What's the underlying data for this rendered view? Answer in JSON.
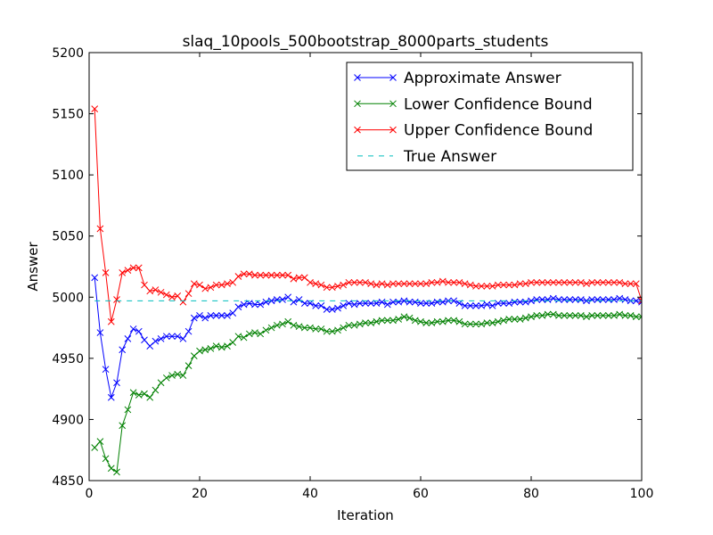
{
  "chart_data": {
    "type": "line",
    "title": "slaq_10pools_500bootstrap_8000parts_students",
    "xlabel": "Iteration",
    "ylabel": "Answer",
    "xlim": [
      0,
      100
    ],
    "ylim": [
      4850,
      5200
    ],
    "xticks": [
      0,
      20,
      40,
      60,
      80,
      100
    ],
    "yticks": [
      4850,
      4900,
      4950,
      5000,
      5050,
      5100,
      5150,
      5200
    ],
    "grid": false,
    "legend_position": "top-right",
    "series": [
      {
        "name": "Approximate Answer",
        "color": "#0000ff",
        "marker": "x",
        "style": "solid",
        "x": [
          1,
          2,
          3,
          4,
          5,
          6,
          7,
          8,
          9,
          10,
          11,
          12,
          13,
          14,
          15,
          16,
          17,
          18,
          19,
          20,
          21,
          22,
          23,
          24,
          25,
          26,
          27,
          28,
          29,
          30,
          31,
          32,
          33,
          34,
          35,
          36,
          37,
          38,
          39,
          40,
          41,
          42,
          43,
          44,
          45,
          46,
          47,
          48,
          49,
          50,
          51,
          52,
          53,
          54,
          55,
          56,
          57,
          58,
          59,
          60,
          61,
          62,
          63,
          64,
          65,
          66,
          67,
          68,
          69,
          70,
          71,
          72,
          73,
          74,
          75,
          76,
          77,
          78,
          79,
          80,
          81,
          82,
          83,
          84,
          85,
          86,
          87,
          88,
          89,
          90,
          91,
          92,
          93,
          94,
          95,
          96,
          97,
          98,
          99,
          100
        ],
        "values": [
          5016,
          4971,
          4941,
          4918,
          4930,
          4957,
          4966,
          4974,
          4972,
          4965,
          4960,
          4964,
          4966,
          4968,
          4968,
          4968,
          4966,
          4972,
          4983,
          4985,
          4983,
          4985,
          4985,
          4985,
          4985,
          4987,
          4992,
          4994,
          4995,
          4994,
          4994,
          4996,
          4997,
          4998,
          4998,
          5000,
          4996,
          4998,
          4995,
          4995,
          4993,
          4993,
          4990,
          4990,
          4991,
          4993,
          4995,
          4994,
          4995,
          4995,
          4995,
          4995,
          4996,
          4994,
          4996,
          4996,
          4997,
          4996,
          4996,
          4995,
          4995,
          4995,
          4996,
          4996,
          4997,
          4997,
          4995,
          4993,
          4993,
          4993,
          4993,
          4994,
          4993,
          4995,
          4995,
          4995,
          4996,
          4996,
          4996,
          4997,
          4998,
          4998,
          4998,
          4999,
          4998,
          4998,
          4998,
          4998,
          4998,
          4997,
          4998,
          4998,
          4998,
          4998,
          4998,
          4999,
          4998,
          4997,
          4997,
          4996
        ]
      },
      {
        "name": "Lower Confidence Bound",
        "color": "#008000",
        "marker": "x",
        "style": "solid",
        "x": [
          1,
          2,
          3,
          4,
          5,
          6,
          7,
          8,
          9,
          10,
          11,
          12,
          13,
          14,
          15,
          16,
          17,
          18,
          19,
          20,
          21,
          22,
          23,
          24,
          25,
          26,
          27,
          28,
          29,
          30,
          31,
          32,
          33,
          34,
          35,
          36,
          37,
          38,
          39,
          40,
          41,
          42,
          43,
          44,
          45,
          46,
          47,
          48,
          49,
          50,
          51,
          52,
          53,
          54,
          55,
          56,
          57,
          58,
          59,
          60,
          61,
          62,
          63,
          64,
          65,
          66,
          67,
          68,
          69,
          70,
          71,
          72,
          73,
          74,
          75,
          76,
          77,
          78,
          79,
          80,
          81,
          82,
          83,
          84,
          85,
          86,
          87,
          88,
          89,
          90,
          91,
          92,
          93,
          94,
          95,
          96,
          97,
          98,
          99,
          100
        ],
        "values": [
          4877,
          4882,
          4868,
          4860,
          4857,
          4895,
          4908,
          4922,
          4920,
          4921,
          4918,
          4924,
          4930,
          4934,
          4936,
          4937,
          4936,
          4944,
          4952,
          4956,
          4957,
          4958,
          4960,
          4959,
          4960,
          4963,
          4968,
          4967,
          4970,
          4971,
          4970,
          4973,
          4975,
          4977,
          4978,
          4980,
          4977,
          4976,
          4975,
          4975,
          4974,
          4974,
          4972,
          4972,
          4973,
          4975,
          4977,
          4977,
          4978,
          4979,
          4979,
          4980,
          4981,
          4981,
          4981,
          4982,
          4984,
          4983,
          4981,
          4980,
          4979,
          4979,
          4980,
          4980,
          4981,
          4981,
          4980,
          4978,
          4978,
          4978,
          4978,
          4979,
          4979,
          4980,
          4981,
          4982,
          4982,
          4982,
          4983,
          4984,
          4985,
          4985,
          4986,
          4986,
          4985,
          4985,
          4985,
          4985,
          4985,
          4984,
          4985,
          4985,
          4985,
          4985,
          4985,
          4986,
          4985,
          4985,
          4984,
          4984
        ]
      },
      {
        "name": "Upper Confidence Bound",
        "color": "#ff0000",
        "marker": "x",
        "style": "solid",
        "x": [
          1,
          2,
          3,
          4,
          5,
          6,
          7,
          8,
          9,
          10,
          11,
          12,
          13,
          14,
          15,
          16,
          17,
          18,
          19,
          20,
          21,
          22,
          23,
          24,
          25,
          26,
          27,
          28,
          29,
          30,
          31,
          32,
          33,
          34,
          35,
          36,
          37,
          38,
          39,
          40,
          41,
          42,
          43,
          44,
          45,
          46,
          47,
          48,
          49,
          50,
          51,
          52,
          53,
          54,
          55,
          56,
          57,
          58,
          59,
          60,
          61,
          62,
          63,
          64,
          65,
          66,
          67,
          68,
          69,
          70,
          71,
          72,
          73,
          74,
          75,
          76,
          77,
          78,
          79,
          80,
          81,
          82,
          83,
          84,
          85,
          86,
          87,
          88,
          89,
          90,
          91,
          92,
          93,
          94,
          95,
          96,
          97,
          98,
          99,
          100
        ],
        "values": [
          5154,
          5056,
          5020,
          4980,
          4998,
          5020,
          5022,
          5024,
          5024,
          5010,
          5005,
          5006,
          5004,
          5002,
          5000,
          5001,
          4996,
          5003,
          5011,
          5010,
          5007,
          5008,
          5010,
          5010,
          5011,
          5012,
          5017,
          5019,
          5019,
          5018,
          5018,
          5018,
          5018,
          5018,
          5018,
          5018,
          5015,
          5016,
          5016,
          5012,
          5011,
          5010,
          5008,
          5008,
          5009,
          5010,
          5012,
          5012,
          5012,
          5012,
          5011,
          5010,
          5011,
          5010,
          5011,
          5011,
          5011,
          5011,
          5011,
          5011,
          5011,
          5012,
          5012,
          5013,
          5012,
          5012,
          5012,
          5011,
          5010,
          5009,
          5009,
          5009,
          5009,
          5010,
          5010,
          5010,
          5010,
          5011,
          5011,
          5012,
          5012,
          5012,
          5012,
          5012,
          5012,
          5012,
          5012,
          5012,
          5012,
          5011,
          5012,
          5012,
          5012,
          5012,
          5012,
          5012,
          5011,
          5011,
          5011,
          4997
        ]
      },
      {
        "name": "True Answer",
        "color": "#00bfbf",
        "marker": "none",
        "style": "dashed",
        "x": [
          1,
          100
        ],
        "values": [
          4997,
          4997
        ]
      }
    ]
  }
}
